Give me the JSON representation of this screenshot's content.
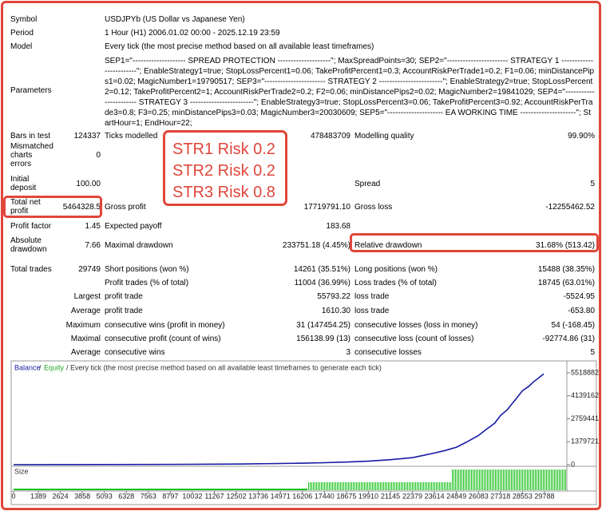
{
  "header": {
    "rows": [
      {
        "label": "Symbol",
        "value": "USDJPYb (US Dollar vs Japanese Yen)"
      },
      {
        "label": "Period",
        "value": "1 Hour (H1) 2006.01.02 00:00 - 2025.12.19 23:59"
      },
      {
        "label": "Model",
        "value": "Every tick (the most precise method based on all available least timeframes)"
      },
      {
        "label": "Parameters",
        "value": "SEP1=\"-------------------- SPREAD PROTECTION --------------------\"; MaxSpreadPoints=30; SEP2=\"----------------------- STRATEGY 1 ------------------------\"; EnableStrategy1=true; StopLossPercent1=0.06; TakeProfitPercent1=0.3; AccountRiskPerTrade1=0.2; F1=0.06; minDistancePips1=0.02; MagicNumber1=19790517; SEP3=\"----------------------- STRATEGY 2 ------------------------\"; EnableStrategy2=true; StopLossPercent2=0.12; TakeProfitPercent2=1; AccountRiskPerTrade2=0.2; F2=0.06; minDistancePips2=0.02; MagicNumber2=19841029; SEP4=\"----------------------- STRATEGY 3 ------------------------\"; EnableStrategy3=true; StopLossPercent3=0.06; TakeProfitPercent3=0.92; AccountRiskPerTrade3=0.8; F3=0.25; minDistancePips3=0.03; MagicNumber3=20030609; SEP5=\"--------------------- EA WORKING TIME ---------------------\"; StartHour=1; EndHour=22;"
      }
    ]
  },
  "stats": {
    "rows": [
      [
        "Bars in test",
        "124337",
        "Ticks modelled",
        "478483709",
        "Modelling quality",
        "99.90%"
      ],
      [
        "Mismatched charts errors",
        "0",
        null,
        null,
        null,
        null
      ],
      [
        "Initial deposit",
        "100.00",
        null,
        null,
        "Spread",
        "5"
      ],
      [
        "Total net profit",
        "5464328.5",
        "Gross profit",
        "17719791.10",
        "Gross loss",
        "-12255462.52"
      ],
      [
        "Profit factor",
        "1.45",
        "Expected payoff",
        "183.68",
        null,
        null
      ],
      [
        "Absolute drawdown",
        "7.66",
        "Maximal drawdown",
        "233751.18 (4.45%)",
        "Relative drawdown",
        "31.68% (513.42)"
      ],
      [
        "Total trades",
        "29749",
        "Short positions (won %)",
        "14261 (35.51%)",
        "Long positions (won %)",
        "15488 (38.35%)"
      ],
      [
        null,
        null,
        "Profit trades (% of total)",
        "11004 (36.99%)",
        "Loss trades (% of total)",
        "18745 (63.01%)"
      ],
      [
        null,
        "Largest",
        "profit trade",
        "55793.22",
        "loss trade",
        "-5524.95"
      ],
      [
        null,
        "Average",
        "profit trade",
        "1610.30",
        "loss trade",
        "-653.80"
      ],
      [
        null,
        "Maximum",
        "consecutive wins (profit in money)",
        "31 (147454.25)",
        "consecutive losses (loss in money)",
        "54 (-168.45)"
      ],
      [
        null,
        "Maximal",
        "consecutive profit (count of wins)",
        "156138.99 (13)",
        "consecutive loss (count of losses)",
        "-92774.86 (31)"
      ],
      [
        null,
        "Average",
        "consecutive wins",
        "3",
        "consecutive losses",
        "5"
      ]
    ]
  },
  "annotation": {
    "lines": [
      "STR1 Risk 0.2",
      "STR2 Risk 0.2",
      "STR3 Risk 0.8"
    ]
  },
  "chart_data": {
    "type": "line",
    "legend_note": "/ Every tick (the most precise method based on all available least timeframes to generate each tick)",
    "size_label": "Size",
    "x": [
      0,
      2000,
      5093,
      8000,
      10032,
      12502,
      14971,
      16206,
      17440,
      18675,
      19910,
      21145,
      22379,
      23000,
      23614,
      24200,
      24849,
      25400,
      26083,
      26500,
      27000,
      27318,
      27700,
      28000,
      28300,
      28553,
      28900,
      29200,
      29500,
      29749
    ],
    "series": [
      {
        "name": "Balance",
        "color": "#1c1ca8",
        "values": [
          100,
          3000,
          8000,
          15000,
          25000,
          40000,
          70000,
          90000,
          120000,
          160000,
          210000,
          300000,
          420000,
          560000,
          700000,
          850000,
          1050000,
          1350000,
          1750000,
          2100000,
          2500000,
          2950000,
          3300000,
          3700000,
          4100000,
          4450000,
          4700000,
          5000000,
          5250000,
          5460000
        ]
      },
      {
        "name": "Equity",
        "color": "#22a822",
        "values": [
          100,
          3000,
          8000,
          15000,
          25000,
          40000,
          70000,
          90000,
          120000,
          160000,
          210000,
          300000,
          420000,
          560000,
          700000,
          850000,
          1050000,
          1350000,
          1750000,
          2100000,
          2500000,
          2950000,
          3300000,
          3700000,
          4100000,
          4450000,
          4700000,
          5000000,
          5250000,
          5460000
        ]
      }
    ],
    "xlim": [
      0,
      31000
    ],
    "xticks": [
      0,
      1389,
      2624,
      3858,
      5093,
      6328,
      7563,
      8797,
      10032,
      11267,
      12502,
      13736,
      14971,
      16206,
      17440,
      18675,
      19910,
      21145,
      22379,
      23614,
      24849,
      26083,
      27318,
      28553,
      29788
    ],
    "ylim": [
      0,
      6094000
    ],
    "yticks": [
      0,
      1379721,
      2759441,
      4139162,
      5518882
    ]
  }
}
